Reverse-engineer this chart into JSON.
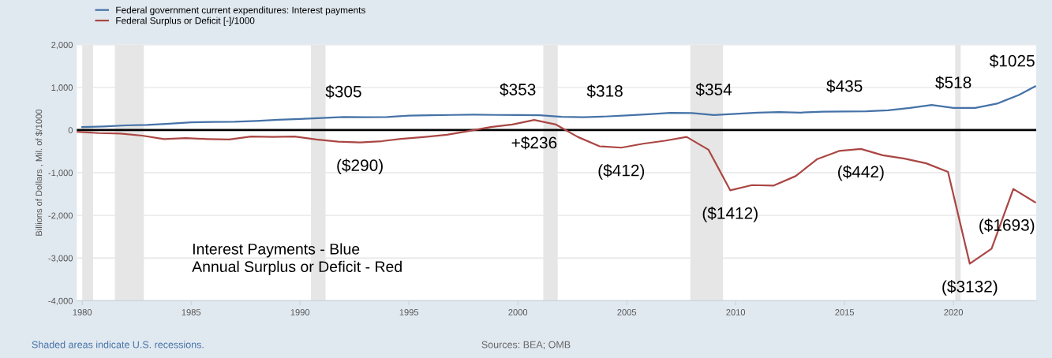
{
  "chart_data": {
    "type": "line",
    "x": [
      1980,
      1981,
      1982,
      1983,
      1984,
      1985,
      1986,
      1987,
      1988,
      1989,
      1990,
      1991,
      1992,
      1993,
      1994,
      1995,
      1996,
      1997,
      1998,
      1999,
      2000,
      2001,
      2002,
      2003,
      2004,
      2005,
      2006,
      2007,
      2008,
      2009,
      2010,
      2011,
      2012,
      2013,
      2014,
      2015,
      2016,
      2017,
      2018,
      2019,
      2020,
      2021,
      2022,
      2023,
      2023.75
    ],
    "series": [
      {
        "name": "Federal government current expenditures: Interest payments",
        "color": "#4572a7",
        "values": [
          70,
          85,
          110,
          120,
          150,
          180,
          190,
          195,
          215,
          240,
          260,
          285,
          305,
          300,
          305,
          340,
          350,
          355,
          360,
          355,
          353,
          350,
          310,
          300,
          318,
          345,
          370,
          405,
          400,
          354,
          380,
          410,
          420,
          410,
          430,
          435,
          440,
          465,
          520,
          590,
          518,
          520,
          620,
          820,
          1025
        ]
      },
      {
        "name": "Federal Surplus or Deficit [-]/1000",
        "color": "#aa4643",
        "x": [
          1979.75,
          1980.75,
          1981.75,
          1982.75,
          1983.75,
          1984.75,
          1985.75,
          1986.75,
          1987.75,
          1988.75,
          1989.75,
          1990.75,
          1991.75,
          1992.75,
          1993.75,
          1994.75,
          1995.75,
          1996.75,
          1997.75,
          1998.75,
          1999.75,
          2000.75,
          2001.75,
          2002.75,
          2003.75,
          2004.75,
          2005.75,
          2006.75,
          2007.75,
          2008.75,
          2009.75,
          2010.75,
          2011.75,
          2012.75,
          2013.75,
          2014.75,
          2015.75,
          2016.75,
          2017.75,
          2018.75,
          2019.75,
          2020.75,
          2021.75,
          2022.75,
          2023.75
        ],
        "values": [
          -40,
          -70,
          -80,
          -130,
          -210,
          -190,
          -210,
          -220,
          -150,
          -160,
          -150,
          -220,
          -270,
          -290,
          -260,
          -200,
          -160,
          -110,
          -20,
          70,
          130,
          236,
          130,
          -160,
          -380,
          -412,
          -320,
          -250,
          -160,
          -460,
          -1412,
          -1290,
          -1300,
          -1080,
          -680,
          -490,
          -442,
          -590,
          -670,
          -780,
          -980,
          -3132,
          -2780,
          -1380,
          -1693
        ]
      }
    ],
    "xlim": [
      1979.75,
      2023.8
    ],
    "xticks": [
      1980,
      1985,
      1990,
      1995,
      2000,
      2005,
      2010,
      2015,
      2020
    ],
    "ylim": [
      -4000,
      2000
    ],
    "yticks": [
      {
        "value": 2000,
        "label": "2,000"
      },
      {
        "value": 1000,
        "label": "1,000"
      },
      0,
      {
        "value": -1000,
        "label": "-1,000"
      },
      {
        "value": -2000,
        "label": "-2,000"
      },
      {
        "value": -3000,
        "label": "-3,000"
      },
      {
        "value": -4000,
        "label": "-4,000"
      }
    ],
    "ylabel": "Billions of Dollars , Mil. of $/1000",
    "grid": "y",
    "legend": "top left",
    "marker": "none",
    "line_style": "solid",
    "ref_lines": [
      {
        "axis": "y",
        "value": 0,
        "color": "#000000"
      }
    ],
    "bands": [
      {
        "axis": "x",
        "from": 1980.0,
        "to": 1980.5,
        "color": "#e6e6e6"
      },
      {
        "axis": "x",
        "from": 1981.5,
        "to": 1982.83,
        "color": "#e6e6e6"
      },
      {
        "axis": "x",
        "from": 1990.5,
        "to": 1991.17,
        "color": "#e6e6e6"
      },
      {
        "axis": "x",
        "from": 2001.17,
        "to": 2001.83,
        "color": "#e6e6e6"
      },
      {
        "axis": "x",
        "from": 2007.92,
        "to": 2009.42,
        "color": "#e6e6e6"
      },
      {
        "axis": "x",
        "from": 2020.08,
        "to": 2020.33,
        "color": "#e6e6e6"
      }
    ],
    "annotations": [
      {
        "text": "$305",
        "x": 1992,
        "y": 305
      },
      {
        "text": "$353",
        "x": 2000,
        "y": 353
      },
      {
        "text": "$318",
        "x": 2004,
        "y": 318
      },
      {
        "text": "$354",
        "x": 2009,
        "y": 354
      },
      {
        "text": "$435",
        "x": 2015,
        "y": 435
      },
      {
        "text": "$518",
        "x": 2020,
        "y": 518
      },
      {
        "text": "$1025",
        "x": 2023.75,
        "y": 1025
      },
      {
        "text": "($290)",
        "x": 1992.75,
        "y": -290
      },
      {
        "text": "+$236",
        "x": 2000.75,
        "y": 236
      },
      {
        "text": "($412)",
        "x": 2004.75,
        "y": -412
      },
      {
        "text": "($1412)",
        "x": 2009.75,
        "y": -1412
      },
      {
        "text": "($442)",
        "x": 2015.75,
        "y": -442
      },
      {
        "text": "($3132)",
        "x": 2020.75,
        "y": -3132
      },
      {
        "text": "($1693)",
        "x": 2023.75,
        "y": -1693
      },
      "Interest Payments - Blue\nAnnual Surplus or Deficit - Red",
      "Shaded areas indicate U.S. recessions.",
      "Sources: BEA; OMB"
    ]
  }
}
